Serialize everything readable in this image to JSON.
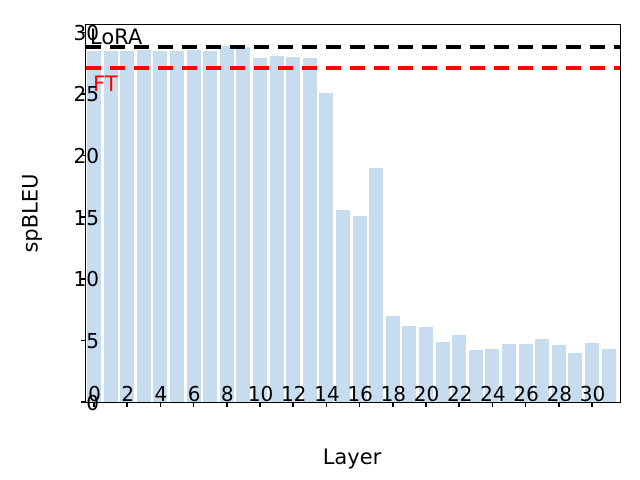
{
  "figure": {
    "background": "#ffffff",
    "bar_color": "#c7dcef",
    "spine_color": "#000000",
    "text_color": "#000000"
  },
  "chart_data": {
    "type": "bar",
    "title": "",
    "xlabel": "Layer",
    "ylabel": "spBLEU",
    "x": [
      0,
      1,
      2,
      3,
      4,
      5,
      6,
      7,
      8,
      9,
      10,
      11,
      12,
      13,
      14,
      15,
      16,
      17,
      18,
      19,
      20,
      21,
      22,
      23,
      24,
      25,
      26,
      27,
      28,
      29,
      30,
      31
    ],
    "values": [
      28.5,
      28.5,
      28.5,
      28.6,
      28.5,
      28.5,
      28.6,
      28.5,
      28.9,
      28.8,
      27.9,
      28.1,
      28.0,
      27.9,
      25.1,
      15.6,
      15.1,
      19.0,
      7.0,
      6.2,
      6.1,
      4.9,
      5.4,
      4.2,
      4.3,
      4.7,
      4.7,
      5.1,
      4.6,
      4.0,
      4.8,
      4.3
    ],
    "xticks": [
      0,
      2,
      4,
      6,
      8,
      10,
      12,
      14,
      16,
      18,
      20,
      22,
      24,
      26,
      28,
      30
    ],
    "yticks": [
      0,
      5,
      10,
      15,
      20,
      25,
      30
    ],
    "ylim": [
      0,
      30.6
    ],
    "grid": false,
    "legend": "none (inline line labels)",
    "reference_lines": [
      {
        "label": "LoRA",
        "value": 28.8,
        "color": "#000000",
        "style": "dashed"
      },
      {
        "label": "FT",
        "value": 27.1,
        "color": "#ff0000",
        "style": "dashed"
      }
    ]
  }
}
